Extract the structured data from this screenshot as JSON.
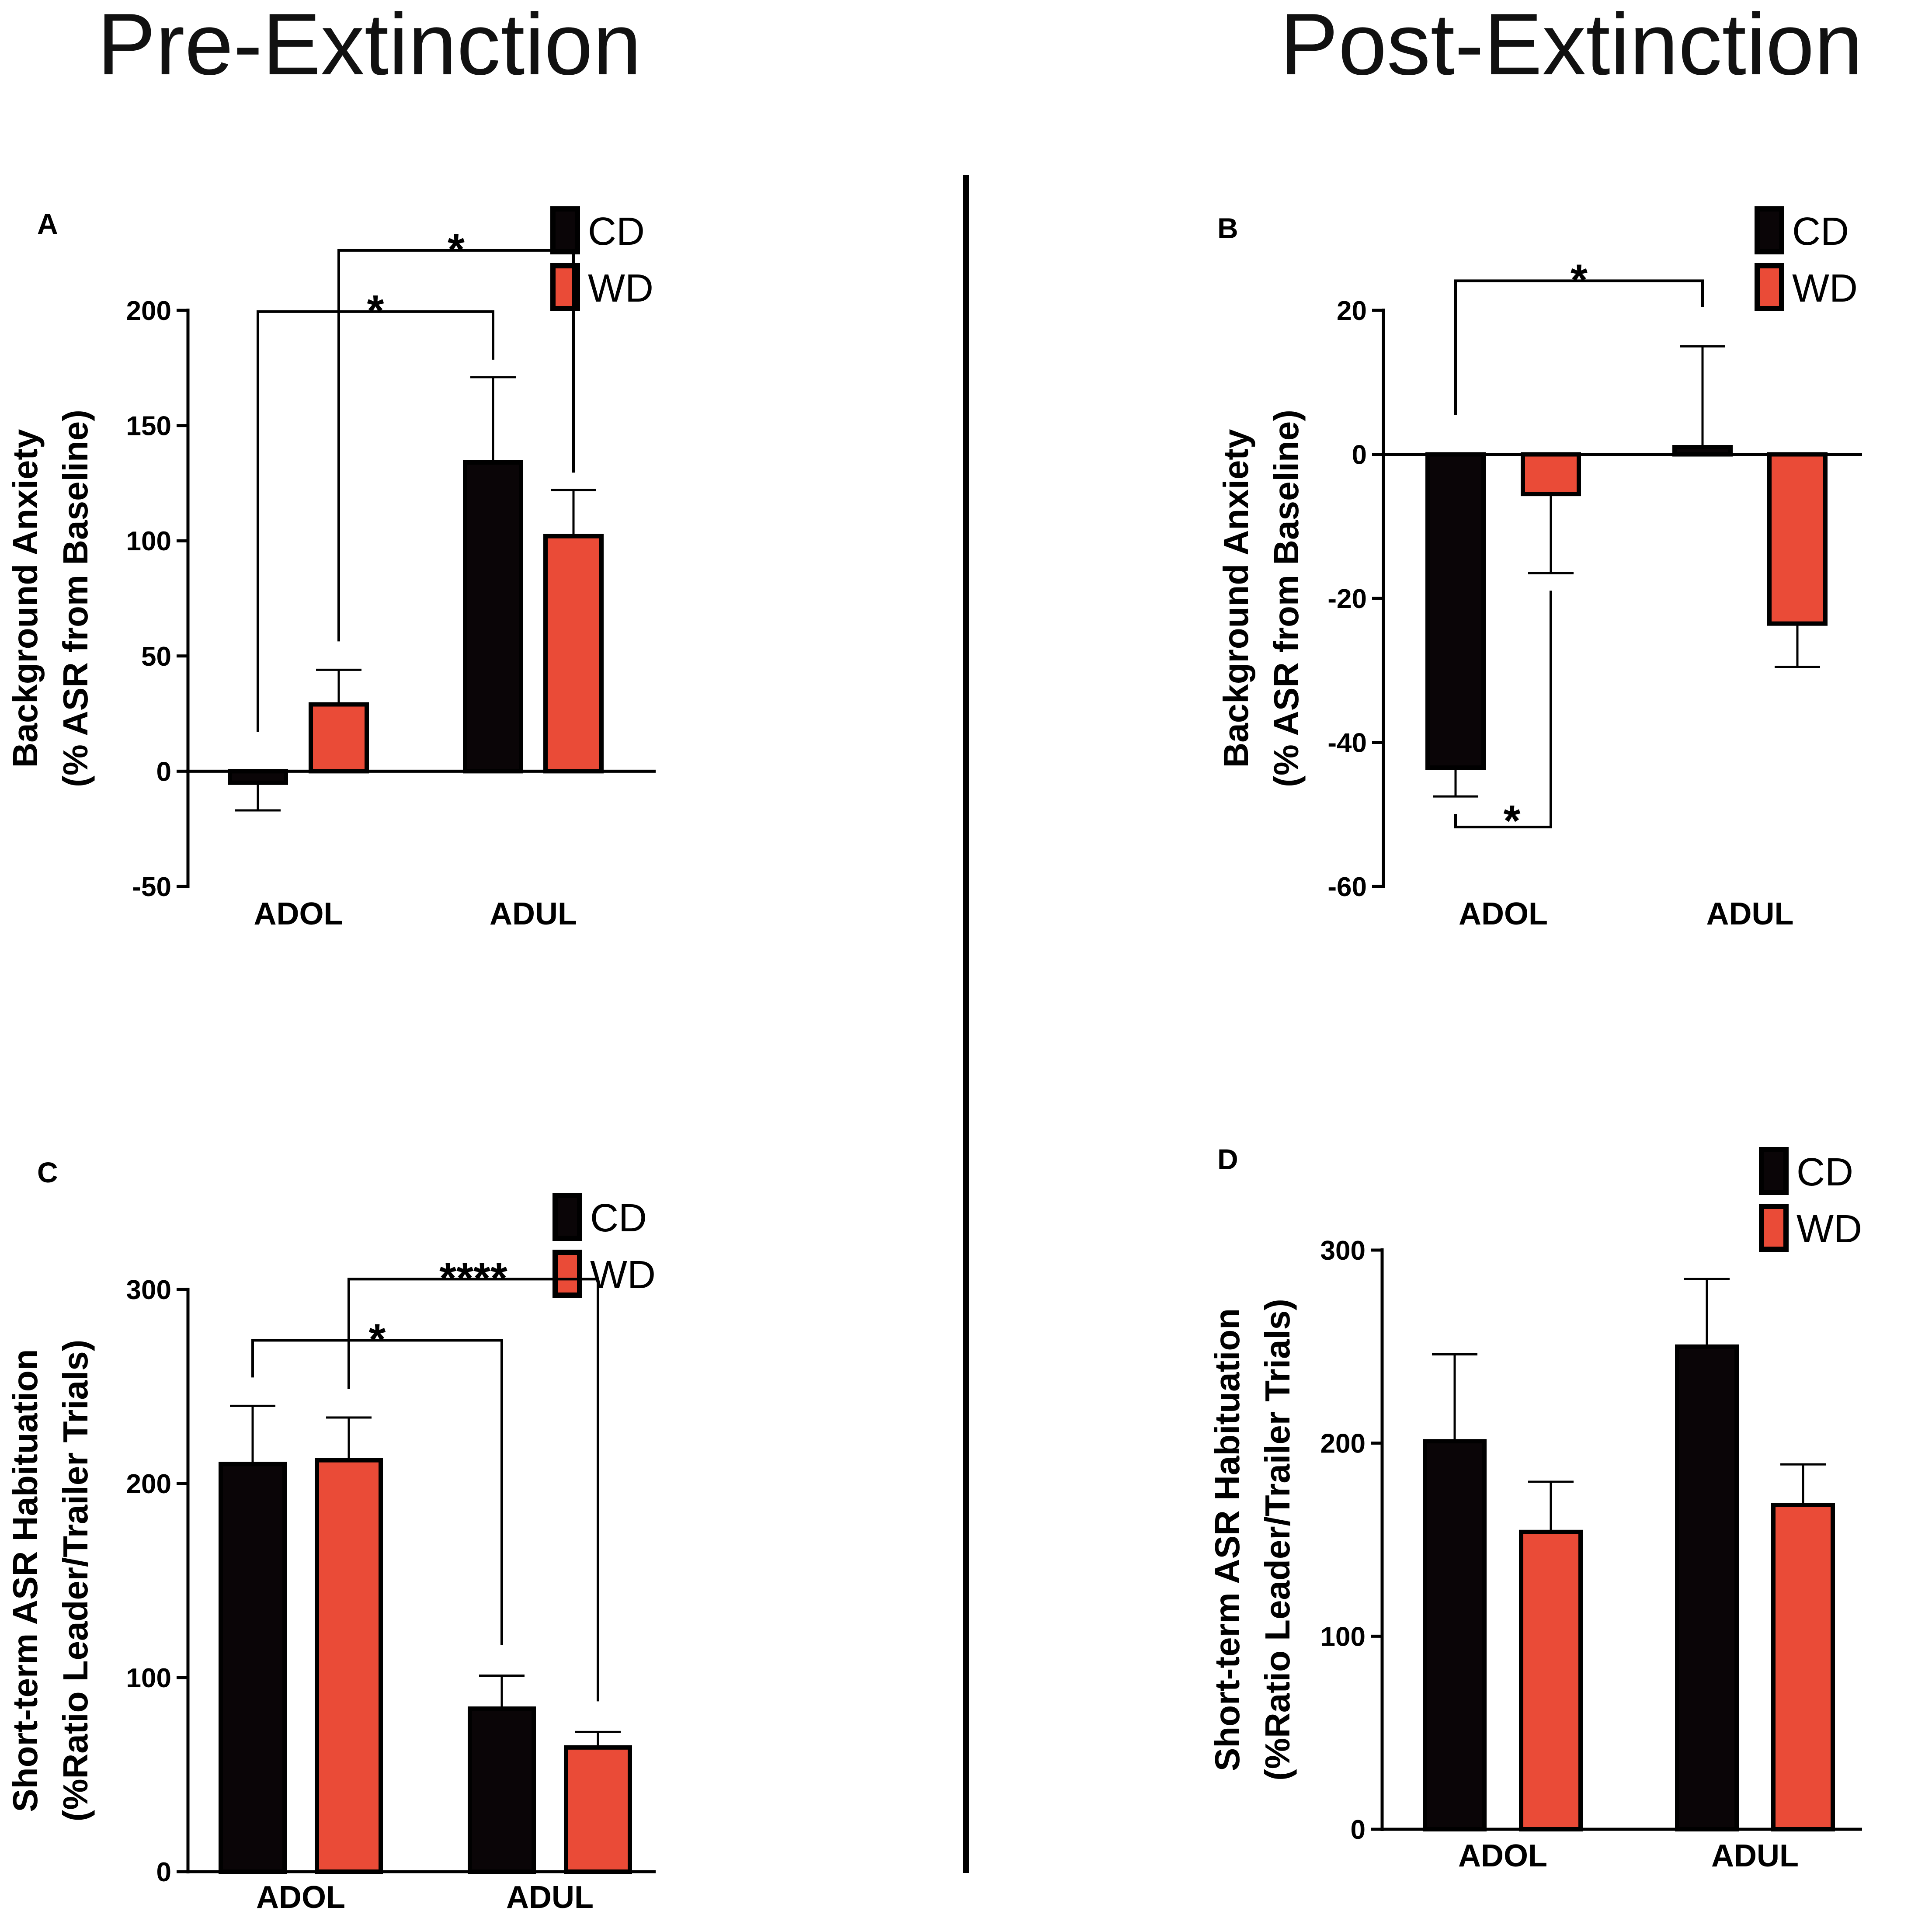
{
  "headings": {
    "left": "Pre-Extinction",
    "right": "Post-Extinction"
  },
  "colors": {
    "CD": "#0a0507",
    "WD": "#ea4b37",
    "outline": "#000000"
  },
  "chart_data": [
    {
      "panel": "A",
      "type": "bar",
      "categories": [
        "ADOL",
        "ADUL"
      ],
      "series": [
        {
          "name": "CD",
          "values": [
            -5,
            134
          ],
          "errors": [
            12,
            37
          ]
        },
        {
          "name": "WD",
          "values": [
            29,
            102
          ],
          "errors": [
            15,
            20
          ]
        }
      ],
      "ylabel": [
        "Background Anxiety",
        "(% ASR from Baseline)"
      ],
      "ylim": [
        -50,
        200
      ],
      "yticks": [
        -50,
        0,
        50,
        100,
        150,
        200
      ],
      "legend": [
        "CD",
        "WD"
      ],
      "legend_position": "top-right",
      "significance": [
        {
          "from": [
            0,
            0
          ],
          "to": [
            1,
            0
          ],
          "label": "*"
        },
        {
          "from": [
            0,
            1
          ],
          "to": [
            1,
            1
          ],
          "label": "*"
        }
      ]
    },
    {
      "panel": "B",
      "type": "bar",
      "categories": [
        "ADOL",
        "ADUL"
      ],
      "series": [
        {
          "name": "CD",
          "values": [
            -43.5,
            1
          ],
          "errors": [
            4,
            14
          ]
        },
        {
          "name": "WD",
          "values": [
            -5.5,
            -23.5
          ],
          "errors": [
            11,
            6
          ]
        }
      ],
      "ylabel": [
        "Background Anxiety",
        "(% ASR from Baseline)"
      ],
      "ylim": [
        -60,
        20
      ],
      "yticks": [
        -60,
        -40,
        -20,
        0,
        20
      ],
      "legend": [
        "CD",
        "WD"
      ],
      "legend_position": "top-right",
      "significance": [
        {
          "from": [
            0,
            0
          ],
          "to": [
            1,
            0
          ],
          "label": "*"
        },
        {
          "from": [
            0,
            0
          ],
          "to": [
            0,
            1
          ],
          "label": "*"
        }
      ]
    },
    {
      "panel": "C",
      "type": "bar",
      "categories": [
        "ADOL",
        "ADUL"
      ],
      "series": [
        {
          "name": "CD",
          "values": [
            210,
            84
          ],
          "errors": [
            30,
            17
          ]
        },
        {
          "name": "WD",
          "values": [
            212,
            64
          ],
          "errors": [
            22,
            8
          ]
        }
      ],
      "ylabel": [
        "Short-term ASR Habituation",
        "(%Ratio Leader/Trailer Trials)"
      ],
      "ylim": [
        0,
        300
      ],
      "yticks": [
        0,
        100,
        200,
        300
      ],
      "legend": [
        "CD",
        "WD"
      ],
      "legend_position": "top-right",
      "significance": [
        {
          "from": [
            0,
            0
          ],
          "to": [
            1,
            0
          ],
          "label": "*"
        },
        {
          "from": [
            0,
            1
          ],
          "to": [
            1,
            1
          ],
          "label": "****"
        }
      ]
    },
    {
      "panel": "D",
      "type": "bar",
      "categories": [
        "ADOL",
        "ADUL"
      ],
      "series": [
        {
          "name": "CD",
          "values": [
            201,
            250
          ],
          "errors": [
            45,
            35
          ]
        },
        {
          "name": "WD",
          "values": [
            154,
            168
          ],
          "errors": [
            26,
            21
          ]
        }
      ],
      "ylabel": [
        "Short-term ASR Habituation",
        "(%Ratio Leader/Trailer Trials)"
      ],
      "ylim": [
        0,
        300
      ],
      "yticks": [
        0,
        100,
        200,
        300
      ],
      "legend": [
        "CD",
        "WD"
      ],
      "legend_position": "top-right",
      "significance": []
    }
  ]
}
